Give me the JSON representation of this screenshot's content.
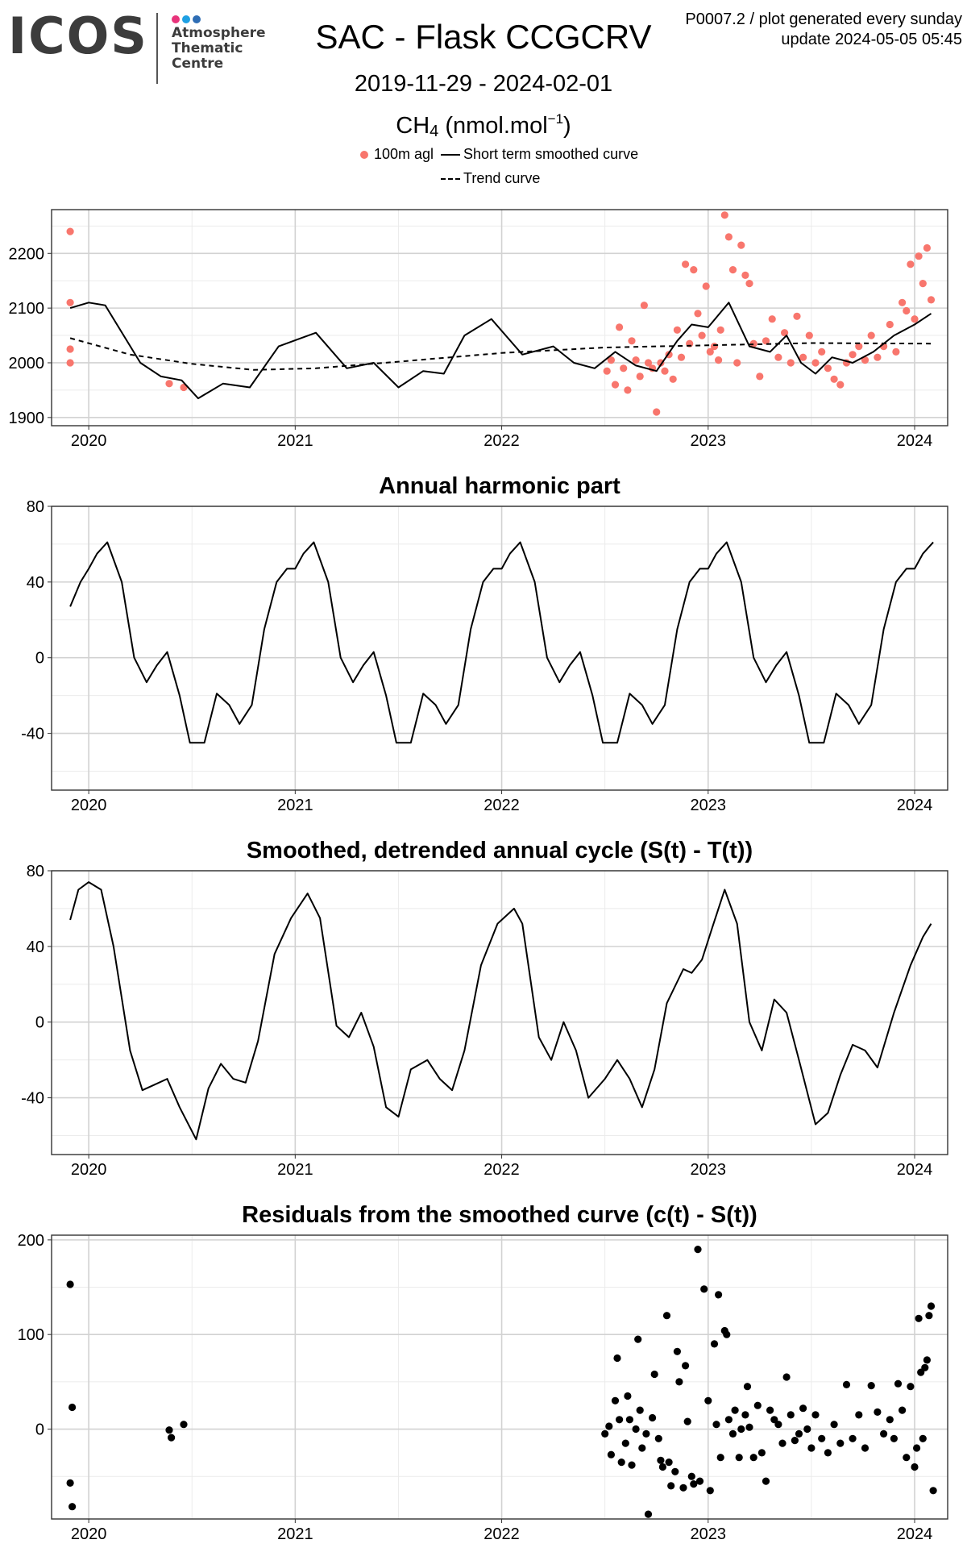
{
  "logo": {
    "wordmark": "ICOS",
    "lines": [
      "Atmosphere",
      "Thematic",
      "Centre"
    ],
    "dot_colors": [
      "#e8337b",
      "#1fa0e3",
      "#2e6db4"
    ]
  },
  "header": {
    "title": "SAC - Flask CCGCRV",
    "date_range": "2019-11-29 - 2024-02-01",
    "species": "CH",
    "species_sub": "4",
    "unit_prefix": "(nmol.mol",
    "unit_sup": "−1",
    "unit_suffix": ")",
    "note_line1": "P0007.2 / plot generated every sunday",
    "note_line2": "update  2024-05-05 05:45"
  },
  "legend": {
    "points": "100m agl",
    "smooth": "Short term smoothed curve",
    "trend": "Trend curve"
  },
  "colors": {
    "points": "#f8766d",
    "lines": "#000000",
    "grid_major": "#d2d2d2",
    "grid_minor": "#ebebeb"
  },
  "chart_data": [
    {
      "type": "scatter",
      "title": "",
      "xlim": [
        2019.82,
        2024.16
      ],
      "ylim": [
        1885,
        2280
      ],
      "x_ticks": [
        "2020",
        "2021",
        "2022",
        "2023",
        "2024"
      ],
      "y_ticks": [
        "1900",
        "2000",
        "2100",
        "2200"
      ],
      "series": [
        {
          "name": "100m agl",
          "kind": "points",
          "color": "#f8766d",
          "x": [
            2019.91,
            2019.91,
            2019.91,
            2019.91,
            2020.39,
            2020.46,
            2022.51,
            2022.53,
            2022.55,
            2022.57,
            2022.59,
            2022.61,
            2022.63,
            2022.65,
            2022.67,
            2022.69,
            2022.71,
            2022.73,
            2022.75,
            2022.77,
            2022.79,
            2022.81,
            2022.83,
            2022.85,
            2022.87,
            2022.89,
            2022.91,
            2022.93,
            2022.95,
            2022.97,
            2022.99,
            2023.01,
            2023.03,
            2023.05,
            2023.06,
            2023.08,
            2023.1,
            2023.12,
            2023.14,
            2023.16,
            2023.18,
            2023.2,
            2023.22,
            2023.25,
            2023.28,
            2023.31,
            2023.34,
            2023.37,
            2023.4,
            2023.43,
            2023.46,
            2023.49,
            2023.52,
            2023.55,
            2023.58,
            2023.61,
            2023.64,
            2023.67,
            2023.7,
            2023.73,
            2023.76,
            2023.79,
            2023.82,
            2023.85,
            2023.88,
            2023.91,
            2023.94,
            2023.96,
            2023.98,
            2024.0,
            2024.02,
            2024.04,
            2024.06,
            2024.08
          ],
          "y": [
            2240,
            2110,
            2025,
            2000,
            1962,
            1955,
            1985,
            2005,
            1960,
            2065,
            1990,
            1950,
            2040,
            2005,
            1975,
            2105,
            2000,
            1990,
            1910,
            2000,
            1985,
            2015,
            1970,
            2060,
            2010,
            2180,
            2035,
            2170,
            2090,
            2050,
            2140,
            2020,
            2030,
            2005,
            2060,
            2270,
            2230,
            2170,
            2000,
            2215,
            2160,
            2145,
            2035,
            1975,
            2040,
            2080,
            2010,
            2055,
            2000,
            2085,
            2010,
            2050,
            2000,
            2020,
            1990,
            1970,
            1960,
            2000,
            2015,
            2030,
            2005,
            2050,
            2010,
            2030,
            2070,
            2020,
            2110,
            2095,
            2180,
            2080,
            2195,
            2145,
            2210,
            2115
          ]
        },
        {
          "name": "Short term smoothed curve",
          "kind": "line",
          "style": "solid",
          "x": [
            2019.91,
            2020.0,
            2020.08,
            2020.25,
            2020.35,
            2020.45,
            2020.53,
            2020.65,
            2020.78,
            2020.92,
            2021.1,
            2021.25,
            2021.38,
            2021.5,
            2021.62,
            2021.72,
            2021.82,
            2021.95,
            2022.1,
            2022.25,
            2022.35,
            2022.45,
            2022.55,
            2022.65,
            2022.75,
            2022.85,
            2022.92,
            2023.0,
            2023.1,
            2023.2,
            2023.3,
            2023.38,
            2023.45,
            2023.52,
            2023.6,
            2023.7,
            2023.8,
            2023.9,
            2024.0,
            2024.08
          ],
          "y": [
            2100,
            2110,
            2105,
            2000,
            1975,
            1968,
            1935,
            1962,
            1955,
            2030,
            2055,
            1990,
            2000,
            1955,
            1985,
            1980,
            2050,
            2080,
            2015,
            2030,
            2000,
            1990,
            2020,
            1995,
            1985,
            2040,
            2070,
            2065,
            2110,
            2030,
            2020,
            2050,
            2000,
            1980,
            2010,
            2000,
            2020,
            2050,
            2070,
            2090
          ]
        },
        {
          "name": "Trend curve",
          "kind": "line",
          "style": "dashed",
          "x": [
            2019.91,
            2020.2,
            2020.5,
            2020.8,
            2021.1,
            2021.5,
            2022.0,
            2022.5,
            2023.0,
            2023.5,
            2024.08
          ],
          "y": [
            2045,
            2015,
            1998,
            1987,
            1990,
            2002,
            2018,
            2028,
            2032,
            2036,
            2035
          ]
        }
      ]
    },
    {
      "type": "line",
      "title": "Annual harmonic part",
      "xlim": [
        2019.82,
        2024.16
      ],
      "ylim": [
        -70,
        80
      ],
      "x_ticks": [
        "2020",
        "2021",
        "2022",
        "2023",
        "2024"
      ],
      "y_ticks": [
        "-40",
        "0",
        "40",
        "80"
      ],
      "series": [
        {
          "name": "",
          "x": [
            2019.91,
            2019.96,
            2020.0,
            2020.04,
            2020.09,
            2020.16,
            2020.22,
            2020.28,
            2020.33,
            2020.38,
            2020.44,
            2020.49,
            2020.56,
            2020.62,
            2020.68,
            2020.73,
            2020.79,
            2020.85,
            2020.91,
            2020.96,
            2021.0,
            2021.04,
            2021.09,
            2021.16,
            2021.22,
            2021.28,
            2021.33,
            2021.38,
            2021.44,
            2021.49,
            2021.56,
            2021.62,
            2021.68,
            2021.73,
            2021.79,
            2021.85,
            2021.91,
            2021.96,
            2022.0,
            2022.04,
            2022.09,
            2022.16,
            2022.22,
            2022.28,
            2022.33,
            2022.38,
            2022.44,
            2022.49,
            2022.56,
            2022.62,
            2022.68,
            2022.73,
            2022.79,
            2022.85,
            2022.91,
            2022.96,
            2023.0,
            2023.04,
            2023.09,
            2023.16,
            2023.22,
            2023.28,
            2023.33,
            2023.38,
            2023.44,
            2023.49,
            2023.56,
            2023.62,
            2023.68,
            2023.73,
            2023.79,
            2023.85,
            2023.91,
            2023.96,
            2024.0,
            2024.04,
            2024.09
          ],
          "y": [
            27,
            40,
            47,
            55,
            61,
            40,
            0,
            -13,
            -4,
            3,
            -20,
            -45,
            -45,
            -19,
            -25,
            -35,
            -25,
            15,
            40,
            47,
            47,
            55,
            61,
            40,
            0,
            -13,
            -4,
            3,
            -20,
            -45,
            -45,
            -19,
            -25,
            -35,
            -25,
            15,
            40,
            47,
            47,
            55,
            61,
            40,
            0,
            -13,
            -4,
            3,
            -20,
            -45,
            -45,
            -19,
            -25,
            -35,
            -25,
            15,
            40,
            47,
            47,
            55,
            61,
            40,
            0,
            -13,
            -4,
            3,
            -20,
            -45,
            -45,
            -19,
            -25,
            -35,
            -25,
            15,
            40,
            47,
            47,
            55,
            61
          ]
        }
      ]
    },
    {
      "type": "line",
      "title": "Smoothed, detrended annual cycle (S(t) - T(t))",
      "xlim": [
        2019.82,
        2024.16
      ],
      "ylim": [
        -70,
        80
      ],
      "x_ticks": [
        "2020",
        "2021",
        "2022",
        "2023",
        "2024"
      ],
      "y_ticks": [
        "-40",
        "0",
        "40",
        "80"
      ],
      "series": [
        {
          "name": "",
          "x": [
            2019.91,
            2019.95,
            2020.0,
            2020.06,
            2020.12,
            2020.2,
            2020.26,
            2020.32,
            2020.38,
            2020.44,
            2020.52,
            2020.58,
            2020.64,
            2020.7,
            2020.76,
            2020.82,
            2020.9,
            2020.98,
            2021.06,
            2021.12,
            2021.2,
            2021.26,
            2021.32,
            2021.38,
            2021.44,
            2021.5,
            2021.56,
            2021.64,
            2021.7,
            2021.76,
            2021.82,
            2021.9,
            2021.98,
            2022.06,
            2022.1,
            2022.18,
            2022.24,
            2022.3,
            2022.36,
            2022.42,
            2022.5,
            2022.56,
            2022.62,
            2022.68,
            2022.74,
            2022.8,
            2022.88,
            2022.92,
            2022.97,
            2023.02,
            2023.08,
            2023.14,
            2023.2,
            2023.26,
            2023.32,
            2023.38,
            2023.44,
            2023.52,
            2023.58,
            2023.64,
            2023.7,
            2023.76,
            2023.82,
            2023.9,
            2023.98,
            2024.04,
            2024.08
          ],
          "y": [
            54,
            70,
            74,
            70,
            40,
            -15,
            -36,
            -33,
            -30,
            -45,
            -62,
            -35,
            -22,
            -30,
            -32,
            -10,
            36,
            55,
            68,
            55,
            -2,
            -8,
            5,
            -13,
            -45,
            -50,
            -25,
            -20,
            -30,
            -36,
            -15,
            30,
            52,
            60,
            52,
            -8,
            -20,
            0,
            -15,
            -40,
            -30,
            -20,
            -30,
            -45,
            -25,
            10,
            28,
            26,
            33,
            50,
            70,
            52,
            0,
            -15,
            12,
            5,
            -20,
            -54,
            -48,
            -28,
            -12,
            -15,
            -24,
            5,
            30,
            45,
            52
          ]
        }
      ]
    },
    {
      "type": "scatter",
      "title": "Residuals from the smoothed curve (c(t) - S(t))",
      "xlim": [
        2019.82,
        2024.16
      ],
      "ylim": [
        -95,
        205
      ],
      "x_ticks": [
        "2020",
        "2021",
        "2022",
        "2023",
        "2024"
      ],
      "y_ticks": [
        "0",
        "100",
        "200"
      ],
      "series": [
        {
          "name": "",
          "color": "#000000",
          "x": [
            2019.91,
            2019.92,
            2019.91,
            2019.92,
            2020.39,
            2020.4,
            2020.46,
            2022.5,
            2022.52,
            2022.53,
            2022.55,
            2022.56,
            2022.57,
            2022.58,
            2022.6,
            2022.61,
            2022.62,
            2022.63,
            2022.65,
            2022.66,
            2022.67,
            2022.68,
            2022.7,
            2022.71,
            2022.73,
            2022.74,
            2022.76,
            2022.77,
            2022.78,
            2022.8,
            2022.81,
            2022.82,
            2022.84,
            2022.85,
            2022.86,
            2022.88,
            2022.89,
            2022.9,
            2022.92,
            2022.93,
            2022.95,
            2022.96,
            2022.98,
            2023.0,
            2023.01,
            2023.03,
            2023.04,
            2023.05,
            2023.06,
            2023.08,
            2023.09,
            2023.1,
            2023.12,
            2023.13,
            2023.15,
            2023.16,
            2023.18,
            2023.19,
            2023.2,
            2023.22,
            2023.24,
            2023.26,
            2023.28,
            2023.3,
            2023.32,
            2023.34,
            2023.36,
            2023.38,
            2023.4,
            2023.42,
            2023.44,
            2023.46,
            2023.48,
            2023.5,
            2023.52,
            2023.55,
            2023.58,
            2023.61,
            2023.64,
            2023.67,
            2023.7,
            2023.73,
            2023.76,
            2023.79,
            2023.82,
            2023.85,
            2023.88,
            2023.9,
            2023.92,
            2023.94,
            2023.96,
            2023.98,
            2024.0,
            2024.01,
            2024.02,
            2024.03,
            2024.04,
            2024.05,
            2024.06,
            2024.07,
            2024.08,
            2024.09
          ],
          "y": [
            153,
            23,
            -57,
            -82,
            -1,
            -9,
            5,
            -5,
            3,
            -27,
            30,
            75,
            10,
            -35,
            -15,
            35,
            10,
            -38,
            0,
            95,
            20,
            -20,
            -5,
            -90,
            12,
            58,
            -10,
            -33,
            -40,
            120,
            -35,
            -60,
            -45,
            82,
            50,
            -62,
            67,
            8,
            -50,
            -58,
            190,
            -55,
            148,
            30,
            -65,
            90,
            5,
            142,
            -30,
            104,
            100,
            10,
            -5,
            20,
            -30,
            0,
            15,
            45,
            2,
            -30,
            25,
            -25,
            -55,
            20,
            10,
            5,
            -15,
            55,
            15,
            -12,
            -5,
            22,
            0,
            -20,
            15,
            -10,
            -25,
            5,
            -15,
            47,
            -10,
            15,
            -20,
            46,
            18,
            -5,
            10,
            -10,
            48,
            20,
            -30,
            45,
            -40,
            -20,
            117,
            60,
            -10,
            65,
            73,
            120,
            130,
            -65
          ]
        }
      ]
    }
  ]
}
